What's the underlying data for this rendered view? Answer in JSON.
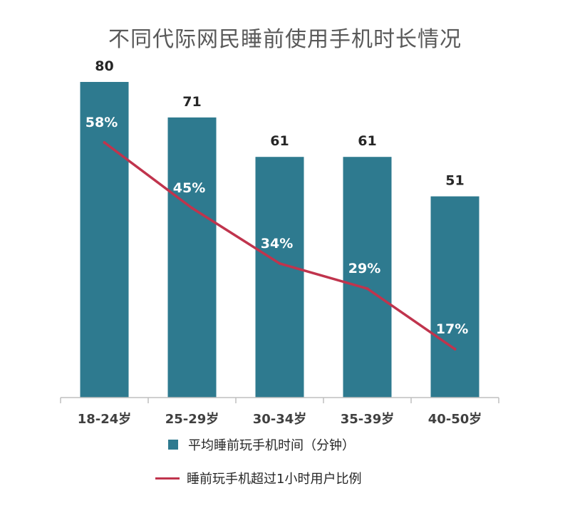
{
  "chart_data": {
    "type": "bar",
    "title": "不同代际网民睡前使用手机时长情况",
    "categories": [
      "18-24岁",
      "25-29岁",
      "30-34岁",
      "35-39岁",
      "40-50岁"
    ],
    "series": [
      {
        "name": "平均睡前玩手机时间（分钟）",
        "type": "bar",
        "color": "#2E7A8F",
        "values": [
          80,
          71,
          61,
          61,
          51
        ],
        "labels": [
          "80",
          "71",
          "61",
          "61",
          "51"
        ]
      },
      {
        "name": "睡前玩手机超过1小时用户比例",
        "type": "line",
        "color": "#C0344D",
        "values": [
          58,
          45,
          34,
          29,
          17
        ],
        "labels": [
          "58%",
          "45%",
          "34%",
          "29%",
          "17%"
        ]
      }
    ],
    "legend_position": "bottom",
    "grid": false
  }
}
